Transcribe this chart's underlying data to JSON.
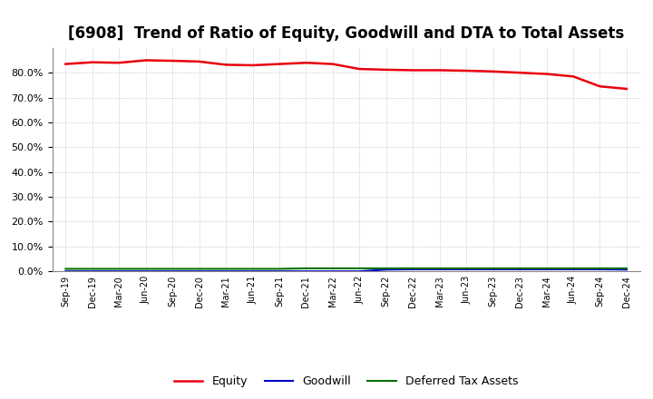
{
  "title": "[6908]  Trend of Ratio of Equity, Goodwill and DTA to Total Assets",
  "x_labels": [
    "Sep-19",
    "Dec-19",
    "Mar-20",
    "Jun-20",
    "Sep-20",
    "Dec-20",
    "Mar-21",
    "Jun-21",
    "Sep-21",
    "Dec-21",
    "Mar-22",
    "Jun-22",
    "Sep-22",
    "Dec-22",
    "Mar-23",
    "Jun-23",
    "Sep-23",
    "Dec-23",
    "Mar-24",
    "Jun-24",
    "Sep-24",
    "Dec-24"
  ],
  "equity": [
    83.5,
    84.2,
    84.0,
    85.0,
    84.8,
    84.5,
    83.2,
    83.0,
    83.5,
    84.0,
    83.5,
    81.5,
    81.2,
    81.0,
    81.0,
    80.8,
    80.5,
    80.0,
    79.5,
    78.5,
    74.5,
    73.5
  ],
  "goodwill": [
    0.0,
    0.0,
    0.0,
    0.0,
    0.0,
    0.0,
    0.0,
    0.0,
    0.0,
    0.0,
    0.0,
    0.0,
    0.7,
    0.8,
    0.8,
    0.8,
    0.8,
    0.8,
    0.8,
    0.8,
    0.8,
    0.7
  ],
  "dta": [
    1.0,
    1.0,
    1.0,
    1.0,
    1.0,
    1.0,
    1.0,
    1.0,
    1.0,
    1.2,
    1.2,
    1.2,
    1.2,
    1.2,
    1.2,
    1.2,
    1.2,
    1.2,
    1.2,
    1.2,
    1.2,
    1.2
  ],
  "equity_color": "#e8000d",
  "goodwill_color": "#0000cc",
  "dta_color": "#007000",
  "ylim": [
    0,
    90
  ],
  "yticks": [
    0,
    10,
    20,
    30,
    40,
    50,
    60,
    70,
    80
  ],
  "background_color": "#ffffff",
  "grid_color": "#b0b0b0",
  "title_fontsize": 12
}
